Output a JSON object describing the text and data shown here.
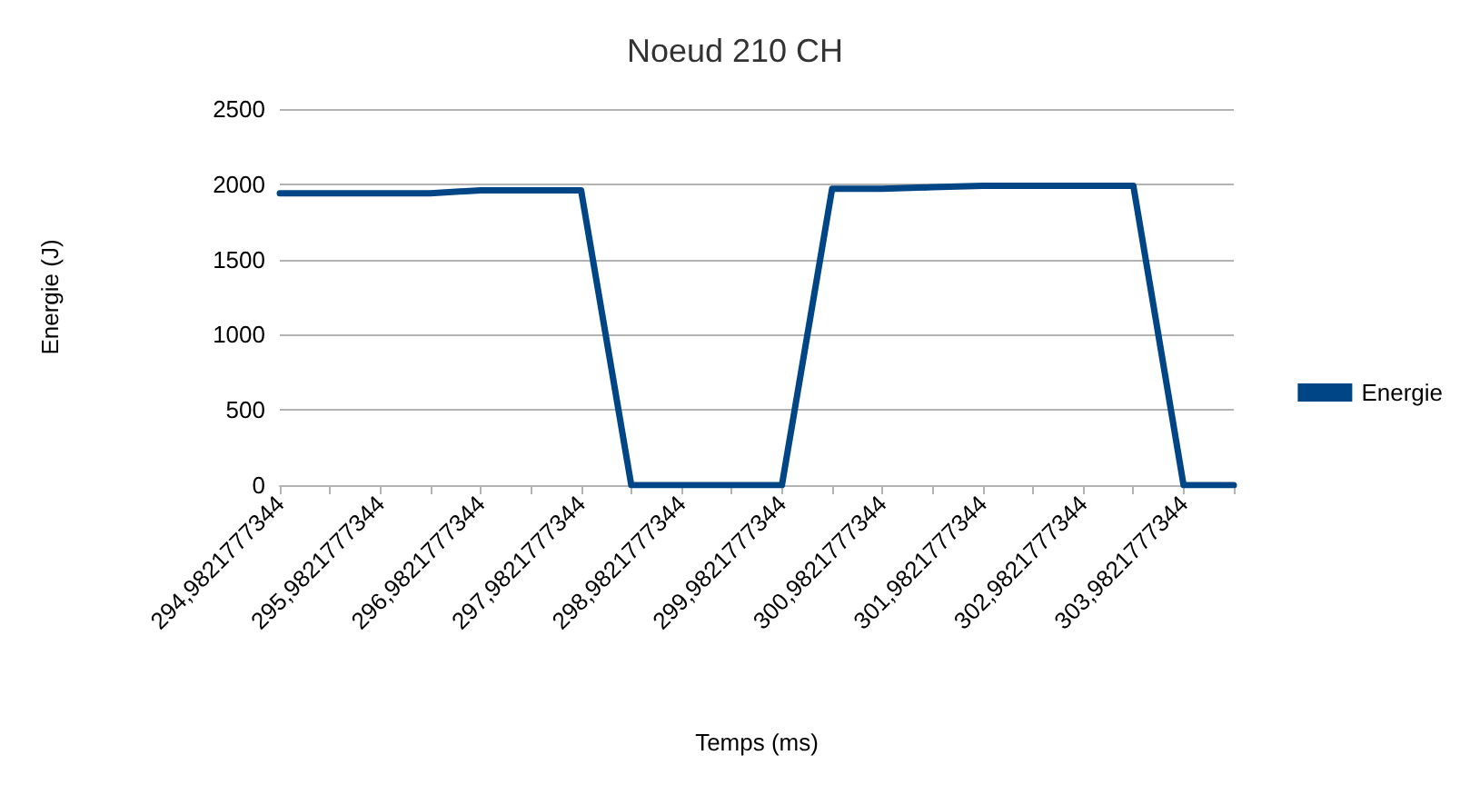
{
  "chart_data": {
    "type": "line",
    "title": "Noeud 210 CH",
    "xlabel": "Temps (ms)",
    "ylabel": "Energie (J)",
    "categories": [
      "294,9821777344",
      null,
      "295,9821777344",
      null,
      "296,9821777344",
      null,
      "297,9821777344",
      null,
      "298,9821777344",
      null,
      "299,9821777344",
      null,
      "300,9821777344",
      null,
      "301,9821777344",
      null,
      "302,9821777344",
      null,
      "303,9821777344",
      null
    ],
    "series": [
      {
        "name": "Energie",
        "color": "#004586",
        "values": [
          1940,
          1940,
          1940,
          1940,
          1960,
          1960,
          1960,
          0,
          0,
          0,
          0,
          1970,
          1970,
          1980,
          1990,
          1990,
          1990,
          1990,
          0,
          0
        ]
      }
    ],
    "ylim": [
      0,
      2500
    ],
    "yticks": [
      0,
      500,
      1000,
      1500,
      2000,
      2500
    ],
    "grid": "y",
    "legend": "right",
    "marker": "none",
    "line_style": "solid"
  }
}
